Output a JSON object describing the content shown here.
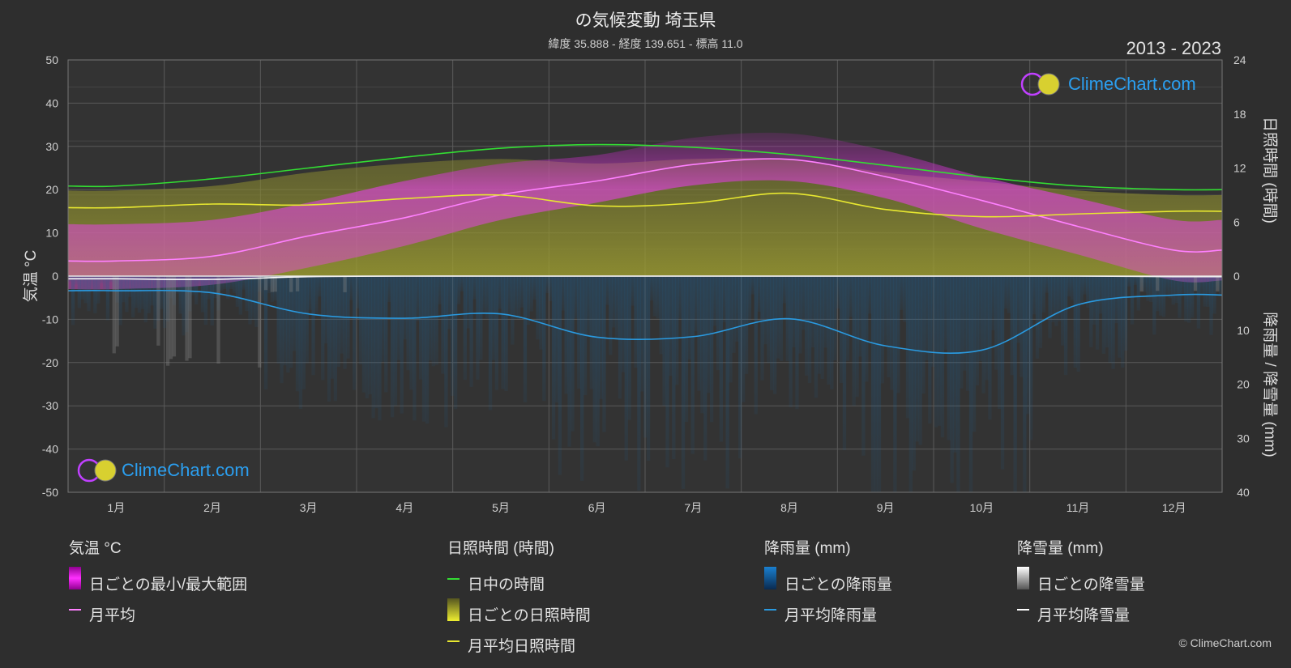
{
  "header": {
    "title": "の気候変動 埼玉県",
    "subtitle": "緯度 35.888 - 経度 139.651 - 標高 11.0",
    "years": "2013 - 2023"
  },
  "brand": {
    "name": "ClimeChart.com",
    "copyright": "© ClimeChart.com"
  },
  "colors": {
    "temp_range": "#e040e0",
    "temp_avg": "#ff80ff",
    "daylight": "#33dd33",
    "sunshine": "#9a9a30",
    "sunshine_avg": "#e8e830",
    "rain": "#2a7fc0",
    "rain_avg": "#2a9ae0",
    "snow": "#ffffff",
    "snow_avg": "#ffffff",
    "background": "#2e2e2e",
    "grid": "#5a5a5a",
    "logo_text": "#2b9ff0"
  },
  "chart_data": {
    "type": "line",
    "categories": [
      "1月",
      "2月",
      "3月",
      "4月",
      "5月",
      "6月",
      "7月",
      "8月",
      "9月",
      "10月",
      "11月",
      "12月"
    ],
    "y_left": {
      "label": "気温 °C",
      "range": [
        -50,
        50
      ],
      "ticks": [
        50,
        40,
        30,
        20,
        10,
        0,
        -10,
        -20,
        -30,
        -40,
        -50
      ]
    },
    "y_right_top": {
      "label": "日照時間 (時間)",
      "range": [
        0,
        24
      ],
      "ticks": [
        24,
        18,
        12,
        6,
        0
      ]
    },
    "y_right_bottom": {
      "label": "降雨量 / 降雪量 (mm)",
      "range": [
        0,
        40
      ],
      "ticks": [
        0,
        10,
        20,
        30,
        40
      ]
    },
    "series": [
      {
        "name": "月平均",
        "axis": "temperature",
        "values": [
          3.5,
          4.6,
          9.3,
          13.5,
          18.8,
          22.0,
          25.8,
          27.0,
          23.0,
          17.5,
          11.5,
          6.0
        ]
      },
      {
        "name": "日中の時間",
        "axis": "sunshine_hours",
        "values": [
          10.0,
          10.8,
          12.0,
          13.2,
          14.2,
          14.6,
          14.3,
          13.5,
          12.3,
          11.0,
          10.0,
          9.6
        ]
      },
      {
        "name": "月平均日照時間",
        "axis": "sunshine_hours",
        "values": [
          7.6,
          8.0,
          7.9,
          8.6,
          9.0,
          7.8,
          8.1,
          9.2,
          7.4,
          6.6,
          6.9,
          7.2
        ]
      },
      {
        "name": "月平均降雨量",
        "axis": "precipitation_mm",
        "values": [
          2.7,
          3.1,
          7.0,
          7.8,
          7.0,
          11.3,
          11.2,
          7.9,
          12.9,
          13.7,
          5.3,
          3.5
        ]
      },
      {
        "name": "月平均降雪量",
        "axis": "precipitation_mm",
        "values": [
          0.5,
          0.6,
          0.1,
          0,
          0,
          0,
          0,
          0,
          0,
          0,
          0,
          0.1
        ]
      }
    ],
    "daily_range_approx": {
      "name": "日ごとの最小/最大範囲",
      "min": [
        -3,
        -2,
        2,
        7,
        13,
        17,
        21,
        22,
        18,
        11,
        5,
        -1
      ],
      "max": [
        12,
        13,
        17,
        22,
        26,
        28,
        32,
        33,
        29,
        23,
        18,
        13
      ]
    },
    "daily_sunshine_approx": {
      "name": "日ごとの日照時間",
      "values": [
        9.5,
        10,
        11.5,
        12.5,
        13,
        12.5,
        13,
        13,
        11.5,
        10.5,
        9.5,
        9
      ]
    },
    "grid": true,
    "legend_position": "bottom"
  },
  "legend": {
    "temperature": {
      "title": "気温 °C",
      "items": [
        "日ごとの最小/最大範囲",
        "月平均"
      ]
    },
    "sunshine": {
      "title": "日照時間 (時間)",
      "items": [
        "日中の時間",
        "日ごとの日照時間",
        "月平均日照時間"
      ]
    },
    "rain": {
      "title": "降雨量 (mm)",
      "items": [
        "日ごとの降雨量",
        "月平均降雨量"
      ]
    },
    "snow": {
      "title": "降雪量 (mm)",
      "items": [
        "日ごとの降雪量",
        "月平均降雪量"
      ]
    }
  }
}
